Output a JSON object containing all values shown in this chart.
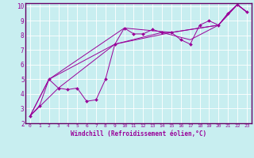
{
  "xlabel": "Windchill (Refroidissement éolien,°C)",
  "bg_color": "#c8eef0",
  "line_color": "#990099",
  "grid_color": "#ffffff",
  "border_color": "#660066",
  "xlim": [
    -0.5,
    23.5
  ],
  "ylim": [
    2,
    10.2
  ],
  "xticks": [
    0,
    1,
    2,
    3,
    4,
    5,
    6,
    7,
    8,
    9,
    10,
    11,
    12,
    13,
    14,
    15,
    16,
    17,
    18,
    19,
    20,
    21,
    22,
    23
  ],
  "yticks": [
    2,
    3,
    4,
    5,
    6,
    7,
    8,
    9,
    10
  ],
  "line1_x": [
    0,
    1,
    2,
    3,
    4,
    5,
    6,
    7,
    8,
    9,
    10,
    11,
    12,
    13,
    14,
    15,
    16,
    17,
    18,
    19,
    20,
    21,
    22,
    23
  ],
  "line1_y": [
    2.5,
    3.2,
    5.0,
    4.4,
    4.3,
    4.4,
    3.5,
    3.6,
    5.0,
    7.4,
    8.5,
    8.1,
    8.1,
    8.4,
    8.2,
    8.2,
    7.7,
    7.4,
    8.7,
    9.0,
    8.7,
    9.5,
    10.1,
    9.6
  ],
  "line2_x": [
    0,
    2,
    9,
    14,
    17,
    20,
    21,
    22,
    23
  ],
  "line2_y": [
    2.5,
    5.0,
    7.4,
    8.2,
    7.7,
    8.7,
    9.5,
    10.1,
    9.6
  ],
  "line3_x": [
    0,
    3,
    9,
    15,
    20,
    22,
    23
  ],
  "line3_y": [
    2.5,
    4.4,
    7.4,
    8.2,
    8.7,
    10.1,
    9.6
  ],
  "line4_x": [
    0,
    2,
    10,
    15,
    20,
    22,
    23
  ],
  "line4_y": [
    2.5,
    5.0,
    8.5,
    8.2,
    8.7,
    10.1,
    9.6
  ]
}
